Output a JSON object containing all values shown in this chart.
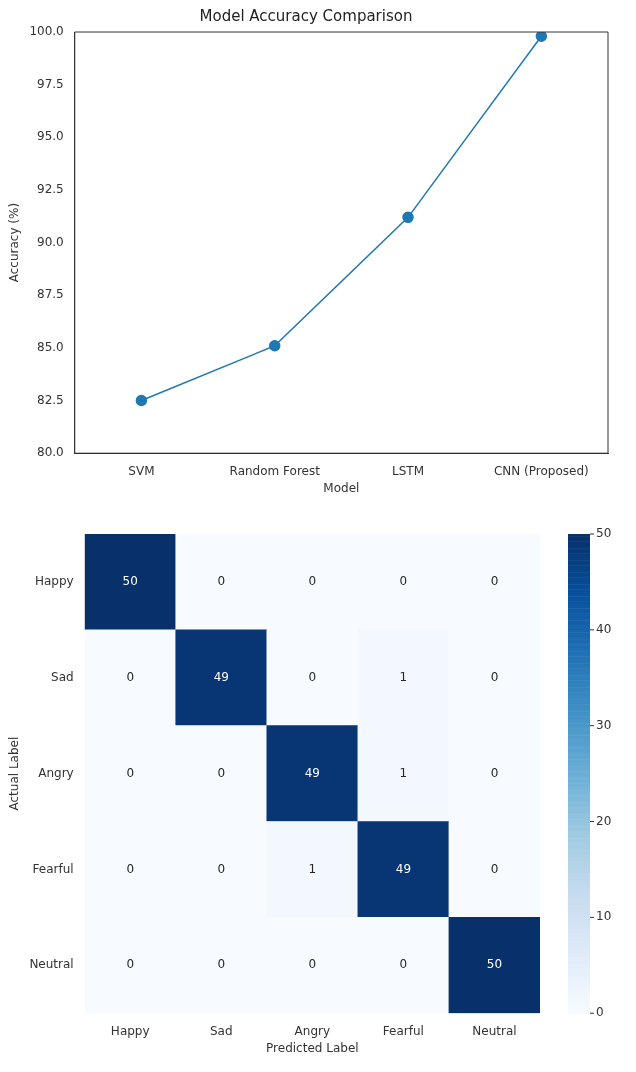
{
  "chart_data": [
    {
      "type": "line",
      "title": "Model Accuracy Comparison",
      "xlabel": "Model",
      "ylabel": "Accuracy (%)",
      "categories": [
        "SVM",
        "Random Forest",
        "LSTM",
        "CNN (Proposed)"
      ],
      "series": [
        {
          "color": "#1f77b4",
          "values": [
            82.5,
            85.1,
            91.2,
            99.8
          ]
        }
      ],
      "ylim": [
        80,
        100
      ],
      "yticks": [
        {
          "value": 80,
          "label": "80.0"
        },
        {
          "value": 82.5,
          "label": "82.5"
        },
        {
          "value": 85,
          "label": "85.0"
        },
        {
          "value": 87.5,
          "label": "87.5"
        },
        {
          "value": 90,
          "label": "90.0"
        },
        {
          "value": 92.5,
          "label": "92.5"
        },
        {
          "value": 95,
          "label": "95.0"
        },
        {
          "value": 97.5,
          "label": "97.5"
        },
        {
          "value": 100,
          "label": "100.0"
        }
      ],
      "grid": false,
      "legend": false,
      "marker": "circle",
      "line_style": "solid"
    },
    {
      "type": "heatmap",
      "xlabel": "Predicted Label",
      "ylabel": "Actual Label",
      "categories": [
        "Happy",
        "Sad",
        "Angry",
        "Fearful",
        "Neutral"
      ],
      "y_categories": [
        "Happy",
        "Sad",
        "Angry",
        "Fearful",
        "Neutral"
      ],
      "cells": [
        [
          50,
          0,
          0,
          0,
          0
        ],
        [
          0,
          49,
          0,
          1,
          0
        ],
        [
          0,
          0,
          49,
          1,
          0
        ],
        [
          0,
          0,
          1,
          49,
          0
        ],
        [
          0,
          0,
          0,
          0,
          50
        ]
      ],
      "clim": [
        0,
        50
      ],
      "cticks": [
        0,
        10,
        20,
        30,
        40,
        50
      ],
      "data_labels": true
    }
  ]
}
